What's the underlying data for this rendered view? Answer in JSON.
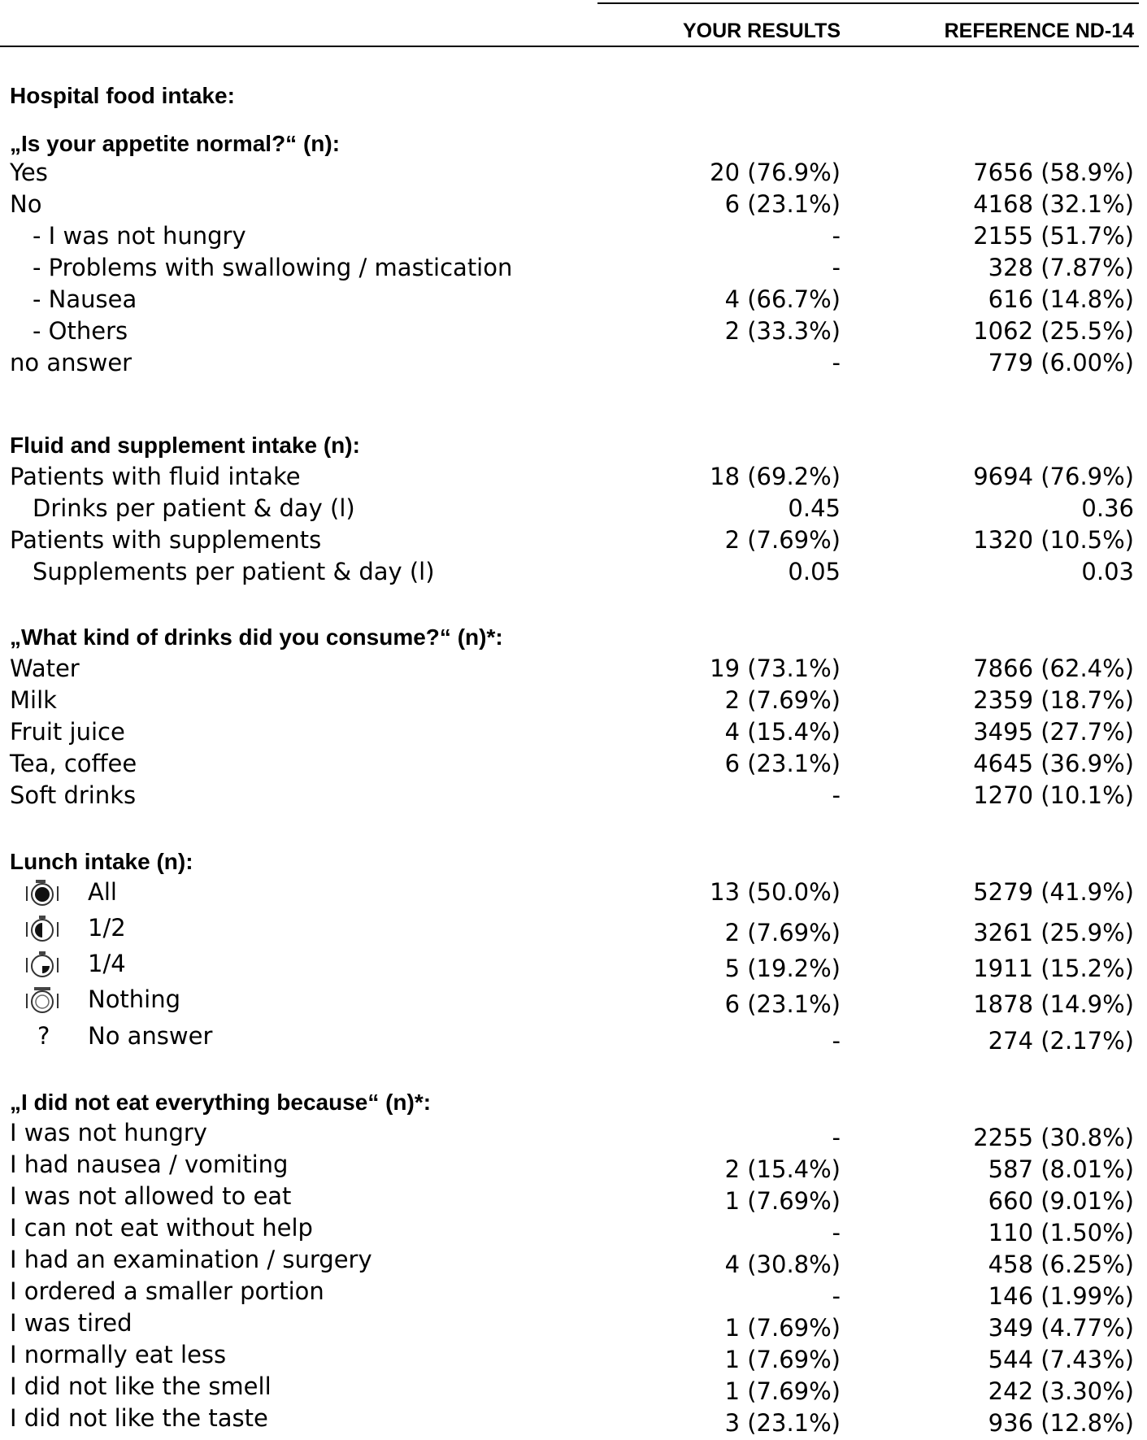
{
  "header": {
    "col1": "YOUR RESULTS",
    "col2": "REFERENCE ND-14"
  },
  "title": "Hospital food intake:",
  "appetite": {
    "heading": "„Is your appetite normal?“ (n):",
    "rows": [
      {
        "label": "Yes",
        "v1": "20 (76.9%)",
        "v2": "7656 (58.9%)"
      },
      {
        "label": "No",
        "v1": "6 (23.1%)",
        "v2": "4168 (32.1%)"
      },
      {
        "label": "- I was not hungry",
        "v1": "-",
        "v2": "2155 (51.7%)"
      },
      {
        "label": "- Problems with swallowing / mastication",
        "v1": "-",
        "v2": "328 (7.87%)"
      },
      {
        "label": "- Nausea",
        "v1": "4 (66.7%)",
        "v2": "616 (14.8%)"
      },
      {
        "label": "- Others",
        "v1": "2 (33.3%)",
        "v2": "1062 (25.5%)"
      },
      {
        "label": "no answer",
        "v1": "-",
        "v2": "779 (6.00%)"
      }
    ]
  },
  "fluid": {
    "heading": "Fluid and supplement intake (n):",
    "rows": [
      {
        "label": "Patients with fluid intake",
        "v1": "18 (69.2%)",
        "v2": "9694 (76.9%)"
      },
      {
        "label": "Drinks per patient & day (l)",
        "v1": "0.45",
        "v2": "0.36"
      },
      {
        "label": "Patients with supplements",
        "v1": "2 (7.69%)",
        "v2": "1320 (10.5%)"
      },
      {
        "label": "Supplements per patient & day (l)",
        "v1": "0.05",
        "v2": "0.03"
      }
    ]
  },
  "drinks": {
    "heading": "„What kind of drinks did you consume?“ (n)*:",
    "rows": [
      {
        "label": "Water",
        "v1": "19 (73.1%)",
        "v2": "7866 (62.4%)"
      },
      {
        "label": "Milk",
        "v1": "2 (7.69%)",
        "v2": "2359 (18.7%)"
      },
      {
        "label": "Fruit juice",
        "v1": "4 (15.4%)",
        "v2": "3495 (27.7%)"
      },
      {
        "label": "Tea, coffee",
        "v1": "6 (23.1%)",
        "v2": "4645 (36.9%)"
      },
      {
        "label": "Soft drinks",
        "v1": "-",
        "v2": "1270 (10.1%)"
      }
    ]
  },
  "lunch": {
    "heading": "Lunch intake (n):",
    "rows": [
      {
        "label": "All",
        "icon": "plate-full-icon",
        "v1": "13 (50.0%)",
        "v2": "5279 (41.9%)"
      },
      {
        "label": "1/2",
        "icon": "plate-half-icon",
        "v1": "2 (7.69%)",
        "v2": "3261 (25.9%)"
      },
      {
        "label": "1/4",
        "icon": "plate-quarter-icon",
        "v1": "5 (19.2%)",
        "v2": "1911 (15.2%)"
      },
      {
        "label": "Nothing",
        "icon": "plate-empty-icon",
        "v1": "6 (23.1%)",
        "v2": "1878 (14.9%)"
      },
      {
        "label": "No answer",
        "icon_text": "?",
        "v1": "-",
        "v2": "274 (2.17%)"
      }
    ]
  },
  "reasons": {
    "heading": "„I did not eat everything because“ (n)*:",
    "rows": [
      {
        "label": "I was not hungry",
        "v1": "-",
        "v2": "2255 (30.8%)"
      },
      {
        "label": "I had nausea / vomiting",
        "v1": "2 (15.4%)",
        "v2": "587 (8.01%)"
      },
      {
        "label": "I was not allowed to eat",
        "v1": "1 (7.69%)",
        "v2": "660 (9.01%)"
      },
      {
        "label": "I can not eat without help",
        "v1": "-",
        "v2": "110 (1.50%)"
      },
      {
        "label": "I had an examination / surgery",
        "v1": "4 (30.8%)",
        "v2": "458 (6.25%)"
      },
      {
        "label": "I ordered a smaller portion",
        "v1": "-",
        "v2": "146 (1.99%)"
      },
      {
        "label": "I was tired",
        "v1": "1 (7.69%)",
        "v2": "349 (4.77%)"
      },
      {
        "label": "I normally eat less",
        "v1": "1 (7.69%)",
        "v2": "544 (7.43%)"
      },
      {
        "label": "I did not like the smell",
        "v1": "1 (7.69%)",
        "v2": "242 (3.30%)"
      },
      {
        "label": "I did not like the taste",
        "v1": "3 (23.1%)",
        "v2": "936 (12.8%)"
      }
    ]
  }
}
